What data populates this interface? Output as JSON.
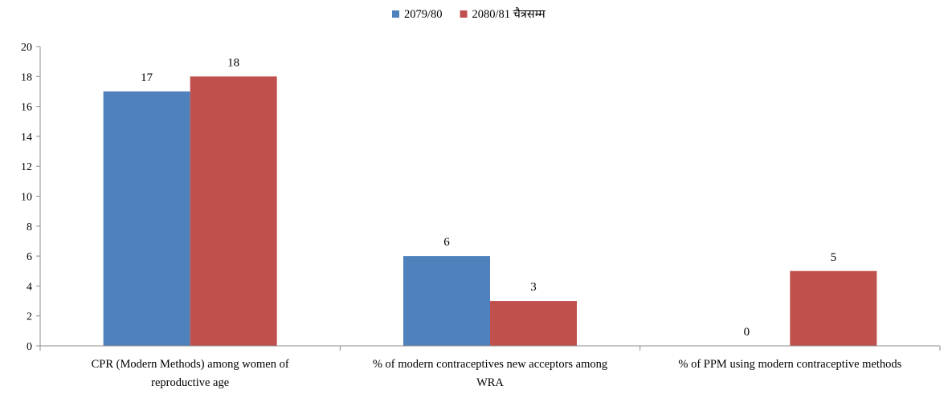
{
  "chart_data": {
    "type": "bar",
    "categories": [
      [
        "CPR (Modern Methods) among women of",
        "reproductive age"
      ],
      [
        "% of modern contraceptives new acceptors among",
        "WRA"
      ],
      [
        "% of PPM using modern contraceptive methods"
      ]
    ],
    "series": [
      {
        "name": "2079/80",
        "color": "#4f81bd",
        "values": [
          17,
          6,
          0
        ],
        "labels": [
          "17",
          "6",
          "0"
        ]
      },
      {
        "name": "2080/81 चैत्रसम्म",
        "color": "#c0504d",
        "values": [
          18,
          3,
          5
        ],
        "labels": [
          "18",
          "3",
          "5"
        ]
      }
    ],
    "yticks": [
      "0",
      "2",
      "4",
      "6",
      "8",
      "10",
      "12",
      "14",
      "16",
      "18",
      "20"
    ],
    "ylim": [
      0,
      20
    ],
    "legend_position": "top-center",
    "grid": false,
    "title": "",
    "xlabel": "",
    "ylabel": ""
  }
}
